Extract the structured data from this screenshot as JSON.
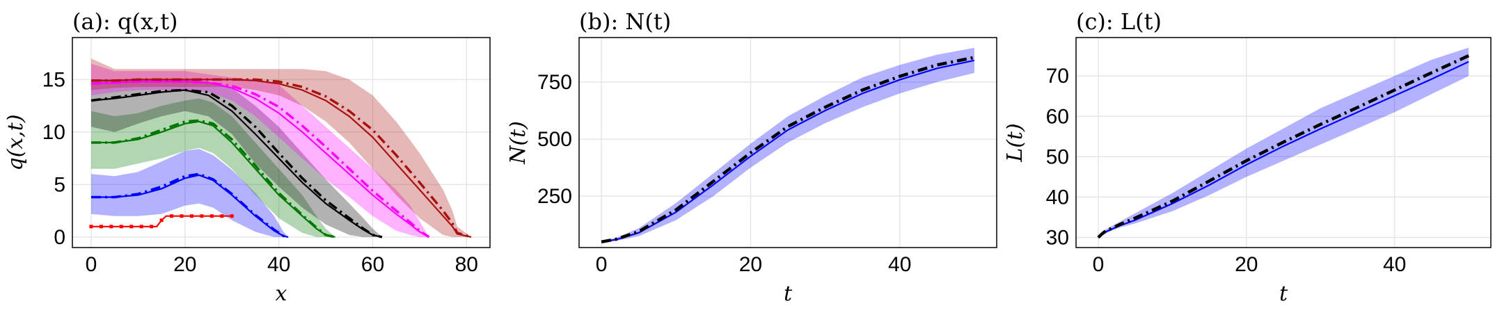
{
  "chart_data": [
    {
      "type": "line",
      "title": "(a): q(x,t)",
      "xlabel": "x",
      "ylabel": "q(x,t)",
      "xlim": [
        -4,
        85
      ],
      "ylim": [
        -1,
        19
      ],
      "xticks": [
        0,
        20,
        40,
        60,
        80
      ],
      "yticks": [
        0,
        5,
        10,
        15
      ],
      "grid": true,
      "series": [
        {
          "color": "#ff0000",
          "x": [
            0,
            5,
            10,
            14,
            15,
            16,
            18,
            22,
            26,
            30
          ],
          "y": [
            1,
            1,
            1,
            1,
            1.6,
            2,
            2,
            2,
            2,
            2
          ],
          "line_style": "solid-with-markers",
          "dashed_y": null,
          "band": null
        },
        {
          "color": "#0000ff",
          "x": [
            0,
            5,
            10,
            15,
            20,
            23,
            26,
            30,
            35,
            39,
            41,
            42
          ],
          "y": [
            3.8,
            3.8,
            4.0,
            4.6,
            5.6,
            5.9,
            5.4,
            4.0,
            2.0,
            0.6,
            0.1,
            0
          ],
          "dashed_y": [
            3.8,
            3.8,
            4.1,
            4.8,
            5.8,
            6.0,
            5.5,
            4.1,
            2.1,
            0.7,
            0.1,
            0
          ],
          "band": {
            "upper": [
              6.0,
              5.8,
              6.2,
              7.2,
              8.2,
              8.4,
              7.8,
              6.4,
              4.2,
              2.0,
              0.5,
              0
            ],
            "lower": [
              2.2,
              2.0,
              2.0,
              2.2,
              3.0,
              3.2,
              2.8,
              1.6,
              0.5,
              0,
              0,
              0
            ]
          }
        },
        {
          "color": "#007700",
          "x": [
            0,
            5,
            10,
            15,
            20,
            23,
            26,
            30,
            35,
            40,
            45,
            48,
            50,
            52
          ],
          "y": [
            9.0,
            9.0,
            9.3,
            10.0,
            10.8,
            11.0,
            10.6,
            9.0,
            6.5,
            4.0,
            2.0,
            0.8,
            0.2,
            0
          ],
          "dashed_y": [
            9.0,
            9.0,
            9.4,
            10.2,
            11.0,
            11.1,
            10.8,
            9.3,
            6.8,
            4.2,
            2.1,
            0.9,
            0.2,
            0
          ],
          "band": {
            "upper": [
              12.0,
              11.5,
              11.8,
              12.5,
              13.0,
              13.2,
              12.8,
              11.5,
              9.0,
              6.5,
              4.0,
              2.0,
              0.8,
              0
            ],
            "lower": [
              6.5,
              6.5,
              7.0,
              7.5,
              8.2,
              8.5,
              8.0,
              6.5,
              4.0,
              1.8,
              0.4,
              0,
              0,
              0
            ]
          }
        },
        {
          "color": "#000000",
          "x": [
            0,
            5,
            10,
            15,
            20,
            25,
            30,
            35,
            40,
            45,
            50,
            55,
            58,
            60,
            62
          ],
          "y": [
            13.0,
            13.2,
            13.5,
            13.8,
            14.0,
            13.5,
            12.0,
            9.8,
            7.5,
            5.2,
            3.2,
            1.6,
            0.7,
            0.2,
            0
          ],
          "dashed_y": [
            13.0,
            13.3,
            13.6,
            13.9,
            14.0,
            13.8,
            12.5,
            10.5,
            8.0,
            5.6,
            3.5,
            1.8,
            0.8,
            0.2,
            0
          ],
          "band": {
            "upper": [
              15.0,
              15.0,
              15.0,
              15.0,
              15.0,
              14.8,
              14.2,
              12.5,
              10.5,
              8.0,
              5.5,
              3.2,
              1.8,
              0.8,
              0
            ],
            "lower": [
              10.5,
              10.0,
              10.8,
              11.5,
              12.0,
              11.5,
              9.8,
              7.0,
              4.8,
              2.8,
              1.2,
              0.2,
              0,
              0,
              0
            ]
          }
        },
        {
          "color": "#ff00ff",
          "x": [
            0,
            5,
            10,
            15,
            20,
            25,
            30,
            35,
            40,
            45,
            50,
            55,
            60,
            65,
            68,
            70,
            72
          ],
          "y": [
            14.6,
            14.7,
            14.8,
            14.8,
            14.8,
            14.7,
            14.2,
            13.2,
            11.8,
            10.0,
            8.0,
            6.0,
            4.0,
            2.2,
            1.2,
            0.5,
            0
          ],
          "dashed_y": [
            14.6,
            14.7,
            14.8,
            14.8,
            14.8,
            14.7,
            14.4,
            13.6,
            12.4,
            10.6,
            8.6,
            6.5,
            4.4,
            2.5,
            1.4,
            0.6,
            0
          ],
          "band": {
            "upper": [
              16.5,
              15.8,
              15.8,
              15.8,
              15.8,
              15.5,
              15.2,
              15.0,
              14.5,
              12.5,
              10.5,
              8.5,
              6.5,
              4.5,
              3.0,
              1.5,
              0
            ],
            "lower": [
              13.5,
              13.8,
              14.0,
              14.0,
              14.0,
              13.8,
              13.0,
              11.5,
              9.5,
              7.5,
              5.5,
              3.8,
              2.0,
              0.6,
              0.2,
              0,
              0
            ]
          }
        },
        {
          "color": "#aa1111",
          "x": [
            0,
            5,
            10,
            15,
            20,
            25,
            30,
            35,
            40,
            45,
            50,
            55,
            60,
            65,
            70,
            75,
            77,
            78,
            81
          ],
          "y": [
            14.9,
            14.9,
            15.0,
            15.0,
            15.0,
            15.0,
            15.0,
            14.9,
            14.6,
            14.0,
            13.0,
            11.5,
            9.5,
            7.0,
            4.5,
            2.0,
            1.0,
            0.3,
            0
          ],
          "dashed_y": [
            14.9,
            14.9,
            15.0,
            15.0,
            15.0,
            15.0,
            15.0,
            15.0,
            14.8,
            14.3,
            13.4,
            12.0,
            10.2,
            7.8,
            5.2,
            2.5,
            1.3,
            0.4,
            0
          ],
          "band": {
            "upper": [
              17.0,
              16.0,
              16.0,
              16.0,
              16.0,
              16.0,
              16.0,
              16.0,
              16.0,
              16.0,
              15.8,
              15.0,
              13.5,
              11.0,
              8.0,
              4.5,
              2.5,
              1.0,
              0
            ],
            "lower": [
              14.0,
              14.2,
              14.3,
              14.3,
              14.3,
              14.3,
              14.3,
              14.0,
              13.5,
              12.5,
              11.0,
              9.0,
              6.5,
              4.0,
              1.8,
              0.2,
              0,
              0,
              0
            ]
          }
        }
      ]
    },
    {
      "type": "line",
      "title": "(b): N(t)",
      "xlabel": "t",
      "ylabel": "N(t)",
      "xlim": [
        -3,
        53
      ],
      "ylim": [
        25,
        945
      ],
      "xticks": [
        0,
        20,
        40
      ],
      "yticks": [
        250,
        500,
        750
      ],
      "grid": true,
      "series": [
        {
          "color": "#0000ff",
          "x": [
            0,
            2,
            5,
            10,
            15,
            20,
            25,
            30,
            35,
            40,
            45,
            50
          ],
          "y": [
            50,
            60,
            90,
            180,
            300,
            425,
            540,
            625,
            700,
            760,
            810,
            845
          ],
          "dashed_y": [
            50,
            62,
            95,
            190,
            315,
            440,
            555,
            640,
            715,
            775,
            825,
            858
          ],
          "band": {
            "upper": [
              52,
              68,
              110,
              220,
              350,
              480,
              600,
              690,
              770,
              825,
              870,
              900
            ],
            "lower": [
              48,
              54,
              75,
              145,
              250,
              375,
              485,
              570,
              640,
              700,
              750,
              790
            ]
          }
        }
      ]
    },
    {
      "type": "line",
      "title": "(c): L(t)",
      "xlabel": "t",
      "ylabel": "L(t)",
      "xlim": [
        -3,
        53
      ],
      "ylim": [
        27.5,
        79.5
      ],
      "xticks": [
        0,
        20,
        40
      ],
      "yticks": [
        30,
        40,
        50,
        60,
        70
      ],
      "grid": true,
      "series": [
        {
          "color": "#0000ff",
          "x": [
            0,
            0.5,
            1,
            2,
            3,
            5,
            10,
            15,
            20,
            25,
            30,
            35,
            40,
            45,
            50
          ],
          "y": [
            30.0,
            30.8,
            31.4,
            32.2,
            33.0,
            34.3,
            38.4,
            43.0,
            48.0,
            52.6,
            56.9,
            61.0,
            65.1,
            69.2,
            73.5
          ],
          "dashed_y": [
            30.0,
            30.9,
            31.6,
            32.4,
            33.3,
            34.8,
            39.0,
            44.0,
            49.0,
            53.6,
            58.0,
            62.2,
            66.5,
            70.8,
            75.0
          ],
          "band": {
            "upper": [
              30.3,
              31.2,
              32.0,
              33.0,
              34.0,
              36.0,
              41.0,
              46.5,
              52.0,
              57.0,
              62.0,
              66.0,
              70.0,
              74.0,
              77.0
            ],
            "lower": [
              29.7,
              30.4,
              31.0,
              31.8,
              32.5,
              33.5,
              36.5,
              40.5,
              45.0,
              49.0,
              53.0,
              57.0,
              61.0,
              65.5,
              70.0
            ]
          }
        }
      ]
    }
  ]
}
